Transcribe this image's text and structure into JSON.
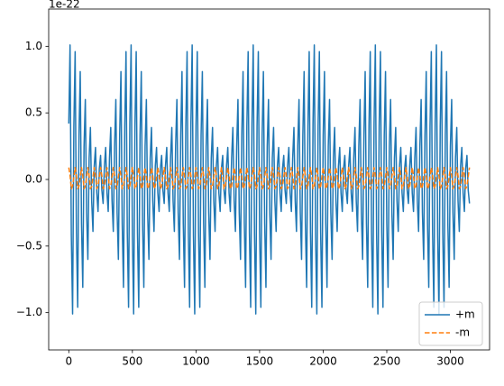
{
  "chart_data": {
    "type": "line",
    "y_offset_label": "1e-22",
    "xlim": [
      -158,
      3308
    ],
    "xticks": [
      0,
      500,
      1000,
      1500,
      2000,
      2500,
      3000
    ],
    "ylim": [
      -1.28,
      1.28
    ],
    "yticks": [
      {
        "value": -1,
        "label": "−1.0"
      },
      {
        "value": -0.5,
        "label": "−0.5"
      },
      {
        "value": 0,
        "label": "0.0"
      },
      {
        "value": 0.5,
        "label": "0.5"
      },
      {
        "value": 1,
        "label": "1.0"
      }
    ],
    "legend_position": "lower right",
    "x": [
      0,
      10,
      20,
      30,
      40,
      50,
      60,
      70,
      80,
      90,
      100,
      110,
      120,
      130,
      140,
      150,
      160,
      170,
      180,
      190,
      200,
      210,
      220,
      230,
      240,
      250,
      260,
      270,
      280,
      290,
      300,
      310,
      320,
      330,
      340,
      350,
      360,
      370,
      380,
      390,
      400,
      410,
      420,
      430,
      440,
      450,
      460,
      470,
      480,
      490,
      500,
      510,
      520,
      530,
      540,
      550,
      560,
      570,
      580,
      590,
      600,
      610,
      620,
      630,
      640,
      650,
      660,
      670,
      680,
      690,
      700,
      710,
      720,
      730,
      740,
      750,
      760,
      770,
      780,
      790,
      800,
      810,
      820,
      830,
      840,
      850,
      860,
      870,
      880,
      890,
      900,
      910,
      920,
      930,
      940,
      950,
      960,
      970,
      980,
      990,
      1000,
      1010,
      1020,
      1030,
      1040,
      1050,
      1060,
      1070,
      1080,
      1090,
      1100,
      1110,
      1120,
      1130,
      1140,
      1150,
      1160,
      1170,
      1180,
      1190,
      1200,
      1210,
      1220,
      1230,
      1240,
      1250,
      1260,
      1270,
      1280,
      1290,
      1300,
      1310,
      1320,
      1330,
      1340,
      1350,
      1360,
      1370,
      1380,
      1390,
      1400,
      1410,
      1420,
      1430,
      1440,
      1450,
      1460,
      1470,
      1480,
      1490,
      1500,
      1510,
      1520,
      1530,
      1540,
      1550,
      1560,
      1570,
      1580,
      1590,
      1600,
      1610,
      1620,
      1630,
      1640,
      1650,
      1660,
      1670,
      1680,
      1690,
      1700,
      1710,
      1720,
      1730,
      1740,
      1750,
      1760,
      1770,
      1780,
      1790,
      1800,
      1810,
      1820,
      1830,
      1840,
      1850,
      1860,
      1870,
      1880,
      1890,
      1900,
      1910,
      1920,
      1930,
      1940,
      1950,
      1960,
      1970,
      1980,
      1990,
      2000,
      2010,
      2020,
      2030,
      2040,
      2050,
      2060,
      2070,
      2080,
      2090,
      2100,
      2110,
      2120,
      2130,
      2140,
      2150,
      2160,
      2170,
      2180,
      2190,
      2200,
      2210,
      2220,
      2230,
      2240,
      2250,
      2260,
      2270,
      2280,
      2290,
      2300,
      2310,
      2320,
      2330,
      2340,
      2350,
      2360,
      2370,
      2380,
      2390,
      2400,
      2410,
      2420,
      2430,
      2440,
      2450,
      2460,
      2470,
      2480,
      2490,
      2500,
      2510,
      2520,
      2530,
      2540,
      2550,
      2560,
      2570,
      2580,
      2590,
      2600,
      2610,
      2620,
      2630,
      2640,
      2650,
      2660,
      2670,
      2680,
      2690,
      2700,
      2710,
      2720,
      2730,
      2740,
      2750,
      2760,
      2770,
      2780,
      2790,
      2800,
      2810,
      2820,
      2830,
      2840,
      2850,
      2860,
      2870,
      2880,
      2890,
      2900,
      2910,
      2920,
      2930,
      2940,
      2950,
      2960,
      2970,
      2980,
      2990,
      3000,
      3010,
      3020,
      3030,
      3040,
      3050,
      3060,
      3070,
      3080,
      3090,
      3100,
      3110,
      3120,
      3130,
      3140,
      3150
    ],
    "series": [
      {
        "name": "+m",
        "color": "#1f77b4",
        "linestyle": "solid",
        "values": [
          0.42,
          1.01,
          -0.42,
          -1.01,
          0.4,
          0.96,
          -0.4,
          -0.96,
          0.33,
          0.81,
          -0.33,
          -0.81,
          0.25,
          0.6,
          -0.25,
          -0.6,
          0.16,
          0.39,
          -0.16,
          -0.39,
          0.1,
          0.24,
          -0.1,
          -0.24,
          0.08,
          0.18,
          -0.08,
          -0.18,
          0.1,
          0.24,
          -0.1,
          -0.24,
          0.16,
          0.39,
          -0.16,
          -0.39,
          0.25,
          0.6,
          -0.25,
          -0.6,
          0.33,
          0.81,
          -0.33,
          -0.81,
          0.4,
          0.96,
          -0.4,
          -0.96,
          0.42,
          1.01,
          -0.42,
          -1.01,
          0.4,
          0.96,
          -0.4,
          -0.96,
          0.33,
          0.81,
          -0.33,
          -0.81,
          0.25,
          0.6,
          -0.25,
          -0.6,
          0.16,
          0.39,
          -0.16,
          -0.39,
          0.1,
          0.24,
          -0.1,
          -0.24,
          0.08,
          0.18,
          -0.08,
          -0.18,
          0.1,
          0.24,
          -0.1,
          -0.24,
          0.16,
          0.39,
          -0.16,
          -0.39,
          0.25,
          0.6,
          -0.25,
          -0.6,
          0.33,
          0.81,
          -0.33,
          -0.81,
          0.4,
          0.96,
          -0.4,
          -0.96,
          0.42,
          1.01,
          -0.42,
          -1.01,
          0.4,
          0.96,
          -0.4,
          -0.96,
          0.33,
          0.81,
          -0.33,
          -0.81,
          0.25,
          0.6,
          -0.25,
          -0.6,
          0.16,
          0.39,
          -0.16,
          -0.39,
          0.1,
          0.24,
          -0.1,
          -0.24,
          0.08,
          0.18,
          -0.08,
          -0.18,
          0.1,
          0.24,
          -0.1,
          -0.24,
          0.16,
          0.39,
          -0.16,
          -0.39,
          0.25,
          0.6,
          -0.25,
          -0.6,
          0.33,
          0.81,
          -0.33,
          -0.81,
          0.4,
          0.96,
          -0.4,
          -0.96,
          0.42,
          1.01,
          -0.42,
          -1.01,
          0.4,
          0.96,
          -0.4,
          -0.96,
          0.33,
          0.81,
          -0.33,
          -0.81,
          0.25,
          0.6,
          -0.25,
          -0.6,
          0.16,
          0.39,
          -0.16,
          -0.39,
          0.1,
          0.24,
          -0.1,
          -0.24,
          0.08,
          0.18,
          -0.08,
          -0.18,
          0.1,
          0.24,
          -0.1,
          -0.24,
          0.16,
          0.39,
          -0.16,
          -0.39,
          0.25,
          0.6,
          -0.25,
          -0.6,
          0.33,
          0.81,
          -0.33,
          -0.81,
          0.4,
          0.96,
          -0.4,
          -0.96,
          0.42,
          1.01,
          -0.42,
          -1.01,
          0.4,
          0.96,
          -0.4,
          -0.96,
          0.33,
          0.81,
          -0.33,
          -0.81,
          0.25,
          0.6,
          -0.25,
          -0.6,
          0.16,
          0.39,
          -0.16,
          -0.39,
          0.1,
          0.24,
          -0.1,
          -0.24,
          0.08,
          0.18,
          -0.08,
          -0.18,
          0.1,
          0.24,
          -0.1,
          -0.24,
          0.16,
          0.39,
          -0.16,
          -0.39,
          0.25,
          0.6,
          -0.25,
          -0.6,
          0.33,
          0.81,
          -0.33,
          -0.81,
          0.4,
          0.96,
          -0.4,
          -0.96,
          0.42,
          1.01,
          -0.42,
          -1.01,
          0.4,
          0.96,
          -0.4,
          -0.96,
          0.33,
          0.81,
          -0.33,
          -0.81,
          0.25,
          0.6,
          -0.25,
          -0.6,
          0.16,
          0.39,
          -0.16,
          -0.39,
          0.1,
          0.24,
          -0.1,
          -0.24,
          0.08,
          0.18,
          -0.08,
          -0.18,
          0.1,
          0.24,
          -0.1,
          -0.24,
          0.16,
          0.39,
          -0.16,
          -0.39,
          0.25,
          0.6,
          -0.25,
          -0.6,
          0.33,
          0.81,
          -0.33,
          -0.81,
          0.4,
          0.96,
          -0.4,
          -0.96,
          0.42,
          1.01,
          -0.42,
          -1.01,
          0.4,
          0.96,
          -0.4,
          -0.96,
          0.33,
          0.81,
          -0.33,
          -0.81,
          0.25,
          0.6,
          -0.25,
          -0.6,
          0.16,
          0.39,
          -0.16,
          -0.39,
          0.1,
          0.24,
          -0.1,
          -0.24,
          0.08,
          0.18,
          -0.08,
          -0.18
        ]
      },
      {
        "name": "-m",
        "color": "#ff7f0e",
        "linestyle": "dashed",
        "values": [
          0.09,
          0.03,
          -0.07,
          -0.05,
          0.02,
          0.09,
          0.03,
          -0.07,
          -0.05,
          0.02,
          0.09,
          0.03,
          -0.07,
          -0.05,
          0.02,
          0.09,
          0.03,
          -0.07,
          -0.05,
          0.02,
          0.09,
          0.03,
          -0.07,
          -0.05,
          0.02,
          0.09,
          0.03,
          -0.07,
          -0.05,
          0.02,
          0.09,
          0.03,
          -0.07,
          -0.05,
          0.02,
          0.09,
          0.03,
          -0.07,
          -0.05,
          0.02,
          0.09,
          0.03,
          -0.07,
          -0.05,
          0.02,
          0.09,
          0.03,
          -0.07,
          -0.05,
          0.02,
          0.09,
          0.03,
          -0.07,
          -0.05,
          0.02,
          0.09,
          0.03,
          -0.07,
          -0.05,
          0.02,
          0.09,
          0.03,
          -0.07,
          -0.05,
          0.02,
          0.09,
          0.03,
          -0.07,
          -0.05,
          0.02,
          0.09,
          0.03,
          -0.07,
          -0.05,
          0.02,
          0.09,
          0.03,
          -0.07,
          -0.05,
          0.02,
          0.09,
          0.03,
          -0.07,
          -0.05,
          0.02,
          0.09,
          0.03,
          -0.07,
          -0.05,
          0.02,
          0.09,
          0.03,
          -0.07,
          -0.05,
          0.02,
          0.09,
          0.03,
          -0.07,
          -0.05,
          0.02,
          0.09,
          0.03,
          -0.07,
          -0.05,
          0.02,
          0.09,
          0.03,
          -0.07,
          -0.05,
          0.02,
          0.09,
          0.03,
          -0.07,
          -0.05,
          0.02,
          0.09,
          0.03,
          -0.07,
          -0.05,
          0.02,
          0.09,
          0.03,
          -0.07,
          -0.05,
          0.02,
          0.09,
          0.03,
          -0.07,
          -0.05,
          0.02,
          0.09,
          0.03,
          -0.07,
          -0.05,
          0.02,
          0.09,
          0.03,
          -0.07,
          -0.05,
          0.02,
          0.09,
          0.03,
          -0.07,
          -0.05,
          0.02,
          0.09,
          0.03,
          -0.07,
          -0.05,
          0.02,
          0.09,
          0.03,
          -0.07,
          -0.05,
          0.02,
          0.09,
          0.03,
          -0.07,
          -0.05,
          0.02,
          0.09,
          0.03,
          -0.07,
          -0.05,
          0.02,
          0.09,
          0.03,
          -0.07,
          -0.05,
          0.02,
          0.09,
          0.03,
          -0.07,
          -0.05,
          0.02,
          0.09,
          0.03,
          -0.07,
          -0.05,
          0.02,
          0.09,
          0.03,
          -0.07,
          -0.05,
          0.02,
          0.09,
          0.03,
          -0.07,
          -0.05,
          0.02,
          0.09,
          0.03,
          -0.07,
          -0.05,
          0.02,
          0.09,
          0.03,
          -0.07,
          -0.05,
          0.02,
          0.09,
          0.03,
          -0.07,
          -0.05,
          0.02,
          0.09,
          0.03,
          -0.07,
          -0.05,
          0.02,
          0.09,
          0.03,
          -0.07,
          -0.05,
          0.02,
          0.09,
          0.03,
          -0.07,
          -0.05,
          0.02,
          0.09,
          0.03,
          -0.07,
          -0.05,
          0.02,
          0.09,
          0.03,
          -0.07,
          -0.05,
          0.02,
          0.09,
          0.03,
          -0.07,
          -0.05,
          0.02,
          0.09,
          0.03,
          -0.07,
          -0.05,
          0.02,
          0.09,
          0.03,
          -0.07,
          -0.05,
          0.02,
          0.09,
          0.03,
          -0.07,
          -0.05,
          0.02,
          0.09,
          0.03,
          -0.07,
          -0.05,
          0.02,
          0.09,
          0.03,
          -0.07,
          -0.05,
          0.02,
          0.09,
          0.03,
          -0.07,
          -0.05,
          0.02,
          0.09,
          0.03,
          -0.07,
          -0.05,
          0.02,
          0.09,
          0.03,
          -0.07,
          -0.05,
          0.02,
          0.09,
          0.03,
          -0.07,
          -0.05,
          0.02,
          0.09,
          0.03,
          -0.07,
          -0.05,
          0.02,
          0.09,
          0.03,
          -0.07,
          -0.05,
          0.02,
          0.09,
          0.03,
          -0.07,
          -0.05,
          0.02,
          0.09,
          0.03,
          -0.07,
          -0.05,
          0.02,
          0.09,
          0.03,
          -0.07,
          -0.05,
          0.02,
          0.09,
          0.03,
          -0.07,
          -0.05,
          0.02,
          0.09,
          0.03,
          -0.07,
          -0.05,
          0.02,
          0.09
        ]
      }
    ]
  }
}
